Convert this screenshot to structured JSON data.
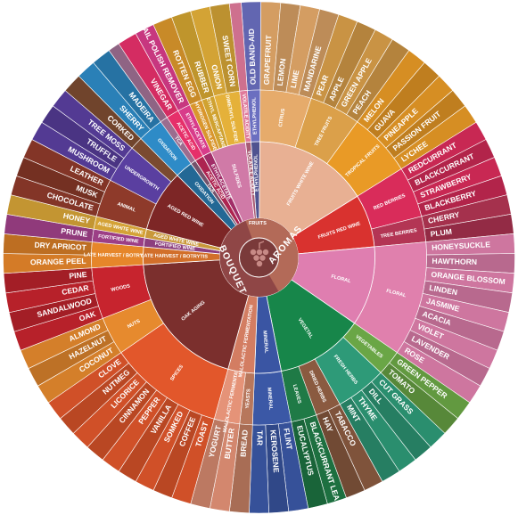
{
  "center": {
    "aromas": "AROMAS",
    "bouquet": "BOUQUET",
    "fruits": "FRUITS",
    "icon": "grape-bunch-icon"
  },
  "colors": {
    "aromas_core": "#b46a57",
    "bouquet_core": "#9a5151",
    "center": "#7a3a3a"
  },
  "sectors": [
    {
      "id": "old-band-aid",
      "family": "ETHYLPHENOL",
      "group": "",
      "color": "#6b6fc0",
      "items": [
        "OLD BAND-AID"
      ]
    },
    {
      "id": "citrus",
      "family": "CITRUS",
      "group": "FRUITS WHITE WINE",
      "color": "#e6ab6b",
      "items": [
        "GRAPEFRUIT",
        "LEMON",
        "LIME",
        "MANDARINE"
      ]
    },
    {
      "id": "tree-fruits",
      "family": "TREE FRUITS",
      "group": "FRUITS WHITE WINE",
      "color": "#dba04a",
      "items": [
        "PEAR",
        "APPLE",
        "GREEN APPLE",
        "PEACH"
      ]
    },
    {
      "id": "tropical",
      "family": "TROPICAL FRUITS",
      "group": "FRUITS WHITE WINE",
      "color": "#e99a26",
      "items": [
        "MELON",
        "GUAVA",
        "PINEAPPLE",
        "PASSION FRUIT",
        "LYCHEE"
      ]
    },
    {
      "id": "red-berries",
      "family": "RED BERRIES",
      "group": "FRUITS RED WINE",
      "color": "#d92c5a",
      "items": [
        "REDCURRANT",
        "BLACKCURRANT",
        "STRAWBERRY",
        "BLACKBERRY"
      ]
    },
    {
      "id": "tree-berries",
      "family": "TREE BERRIES",
      "group": "FRUITS RED WINE",
      "color": "#b33554",
      "items": [
        "CHERRY",
        "PLUM"
      ]
    },
    {
      "id": "floral",
      "family": "FLORAL",
      "group": "",
      "color": "#e080ad",
      "items": [
        "HONEYSUCKLE",
        "HAWTHORN",
        "ORANGE BLOSSOM",
        "LINDEN",
        "JASMINE",
        "ACACIA",
        "VIOLET",
        "LAVENDER",
        "ROSE"
      ]
    },
    {
      "id": "vegetables",
      "family": "VEGETABLES",
      "group": "VEGETAL",
      "color": "#6aa646",
      "items": [
        "GREEN PEPPER",
        "TOMATO"
      ]
    },
    {
      "id": "fresh-herbs",
      "family": "FRESH HERBS",
      "group": "VEGETAL",
      "color": "#2e9a78",
      "items": [
        "CUT GRASS",
        "DILL",
        "THYME",
        "MINT"
      ]
    },
    {
      "id": "dried-herbs",
      "family": "DRIED HERBS",
      "group": "VEGETAL",
      "color": "#8a5a40",
      "items": [
        "TABACCO",
        "HAY"
      ]
    },
    {
      "id": "leaves",
      "family": "LEAVES",
      "group": "VEGETAL",
      "color": "#1f7a46",
      "items": [
        "BLACKCURRANT LEAF",
        "EUCALYPTUS"
      ]
    },
    {
      "id": "mineral",
      "family": "MINERAL",
      "group": "",
      "color": "#3b58a6",
      "items": [
        "FLINT",
        "KEROSENE",
        "TAR"
      ]
    },
    {
      "id": "yeasts",
      "family": "YEASTS",
      "group": "MALOLACTIC FERMENTATION",
      "color": "#b7775c",
      "items": [
        "BREAD"
      ]
    },
    {
      "id": "malolactic",
      "family": "MALOLACTIC FERMENTATION",
      "group": "",
      "color": "#e59378",
      "items": [
        "BUTTER",
        "YOGURT"
      ]
    },
    {
      "id": "oak-spices",
      "family": "SPICES",
      "group": "OAK AGING",
      "color": "#e2572b",
      "items": [
        "TOAST",
        "COFFEE",
        "SOMKED",
        "VANILLA",
        "PEPPER",
        "CINNAMON",
        "LICORICE",
        "NUTMEG",
        "CLOVE"
      ]
    },
    {
      "id": "nuts",
      "family": "NUTS",
      "group": "OAK AGING",
      "color": "#e68a2e",
      "items": [
        "COCONUT",
        "HAZELNUT",
        "ALMOND"
      ]
    },
    {
      "id": "woods",
      "family": "WOODS",
      "group": "OAK AGING",
      "color": "#c7242e",
      "items": [
        "OAK",
        "SANDALWOOD",
        "CEDAR",
        "PINE"
      ]
    },
    {
      "id": "late-harvest",
      "family": "LATE HARVEST / BOTRYTIS",
      "group": "",
      "color": "#e6862a",
      "items": [
        "ORANGE PEEL",
        "DRY APRICOT"
      ]
    },
    {
      "id": "fortified",
      "family": "FORTIFIED WINE",
      "group": "",
      "color": "#9c3f86",
      "items": [
        "PRUNE"
      ]
    },
    {
      "id": "aged-white",
      "family": "AGED WHITE WINE",
      "group": "",
      "color": "#d4a236",
      "items": [
        "HONEY"
      ]
    },
    {
      "id": "animal",
      "family": "ANIMAL",
      "group": "AGED RED WINE",
      "color": "#8e3a2a",
      "items": [
        "CHOCOLATE",
        "MUSK",
        "LEATHER"
      ]
    },
    {
      "id": "undergrowth",
      "family": "UNDERGROWTH",
      "group": "AGED RED WINE",
      "color": "#5a3fa0",
      "items": [
        "MUSHROOM",
        "TRUFFLE",
        "TREE MOSS"
      ]
    },
    {
      "id": "truffle-wood",
      "family": "",
      "group": "AGED RED WINE",
      "color": "#7a4a30",
      "items": [
        "CORKED"
      ]
    },
    {
      "id": "oxidation",
      "family": "OXIDATION",
      "group": "",
      "color": "#2e8bc7",
      "items": [
        "SHERRY",
        "MADEIRA"
      ]
    },
    {
      "id": "tca",
      "family": "TCA",
      "group": "",
      "color": "#9b6d8f",
      "items": []
    },
    {
      "id": "acetic",
      "family": "ACETIC ACID",
      "group": "",
      "color": "#e6306a",
      "items": [
        "VINEGAR"
      ]
    },
    {
      "id": "ethylacetate",
      "family": "ETHYLACETATE",
      "group": "",
      "color": "#d83c8a",
      "items": [
        "NAIL POLISH REMOVER"
      ]
    },
    {
      "id": "hydrogen-sulfide",
      "family": "HYDROGEN SULFIDE",
      "group": "SULFIDES",
      "color": "#d9962c",
      "items": [
        "ROTTEN EGG"
      ]
    },
    {
      "id": "mercaptans",
      "family": "ETHYL MERCAPTANS",
      "group": "SULFIDES",
      "color": "#d0a230",
      "items": [
        "RUBBER"
      ]
    },
    {
      "id": "dmds",
      "family": "DIMETHYL SULFIDE",
      "group": "SULFIDES",
      "color": "#e5b13a",
      "items": [
        "ONION",
        "SWEET CORN"
      ]
    },
    {
      "id": "volatile",
      "family": "VOLATILE ACIDITY",
      "group": "",
      "color": "#e07a9a",
      "items": []
    }
  ],
  "groups": [
    {
      "label": "FRUITS WHITE WINE",
      "color": "#e8b093"
    },
    {
      "label": "FRUITS RED WINE",
      "color": "#d9322f"
    },
    {
      "label": "FLORAL",
      "color": "#df7eb0"
    },
    {
      "label": "VEGETAL",
      "color": "#17864a"
    },
    {
      "label": "MINERAL",
      "color": "#3a55a3"
    },
    {
      "label": "MALOLACTIC FERMENTATION",
      "color": "#d37d62"
    },
    {
      "label": "OAK AGING",
      "color": "#7b2f2d"
    },
    {
      "label": "LATE HARVEST / BOTRYTIS",
      "color": "#d26f2a"
    },
    {
      "label": "FORTIFIED WINE",
      "color": "#8c3f7e"
    },
    {
      "label": "AGED WHITE WINE",
      "color": "#c9983a"
    },
    {
      "label": "AGED RED WINE",
      "color": "#7d2626"
    },
    {
      "label": "SULFIDES",
      "color": "#d07aa7"
    },
    {
      "label": "BRETTANOMYCES",
      "color": "#6a5aae"
    }
  ]
}
